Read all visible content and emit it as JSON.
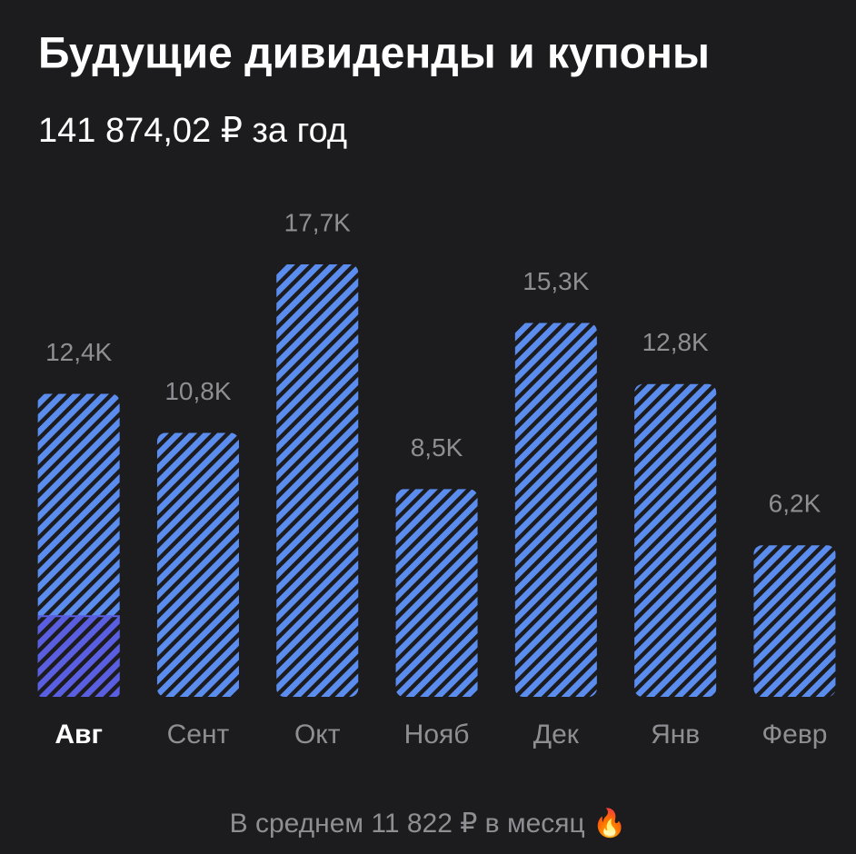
{
  "chart_data": {
    "type": "bar",
    "title": "Будущие дивиденды и купоны",
    "subtitle": "141 874,02 ₽ за год",
    "categories": [
      "Авг",
      "Сент",
      "Окт",
      "Нояб",
      "Дек",
      "Янв",
      "Февр"
    ],
    "values": [
      12.4,
      10.8,
      17.7,
      8.5,
      15.3,
      12.8,
      6.2
    ],
    "value_labels": [
      "12,4K",
      "10,8K",
      "17,7K",
      "8,5K",
      "15,3K",
      "12,8K",
      "6,2K"
    ],
    "partial_values": [
      3.3,
      null,
      null,
      null,
      null,
      null,
      null
    ],
    "color": "#5b8def",
    "partial_color": "#5a5ee0",
    "selected": 0,
    "footer": "В среднем 11 822 ₽ в месяц 🔥"
  }
}
